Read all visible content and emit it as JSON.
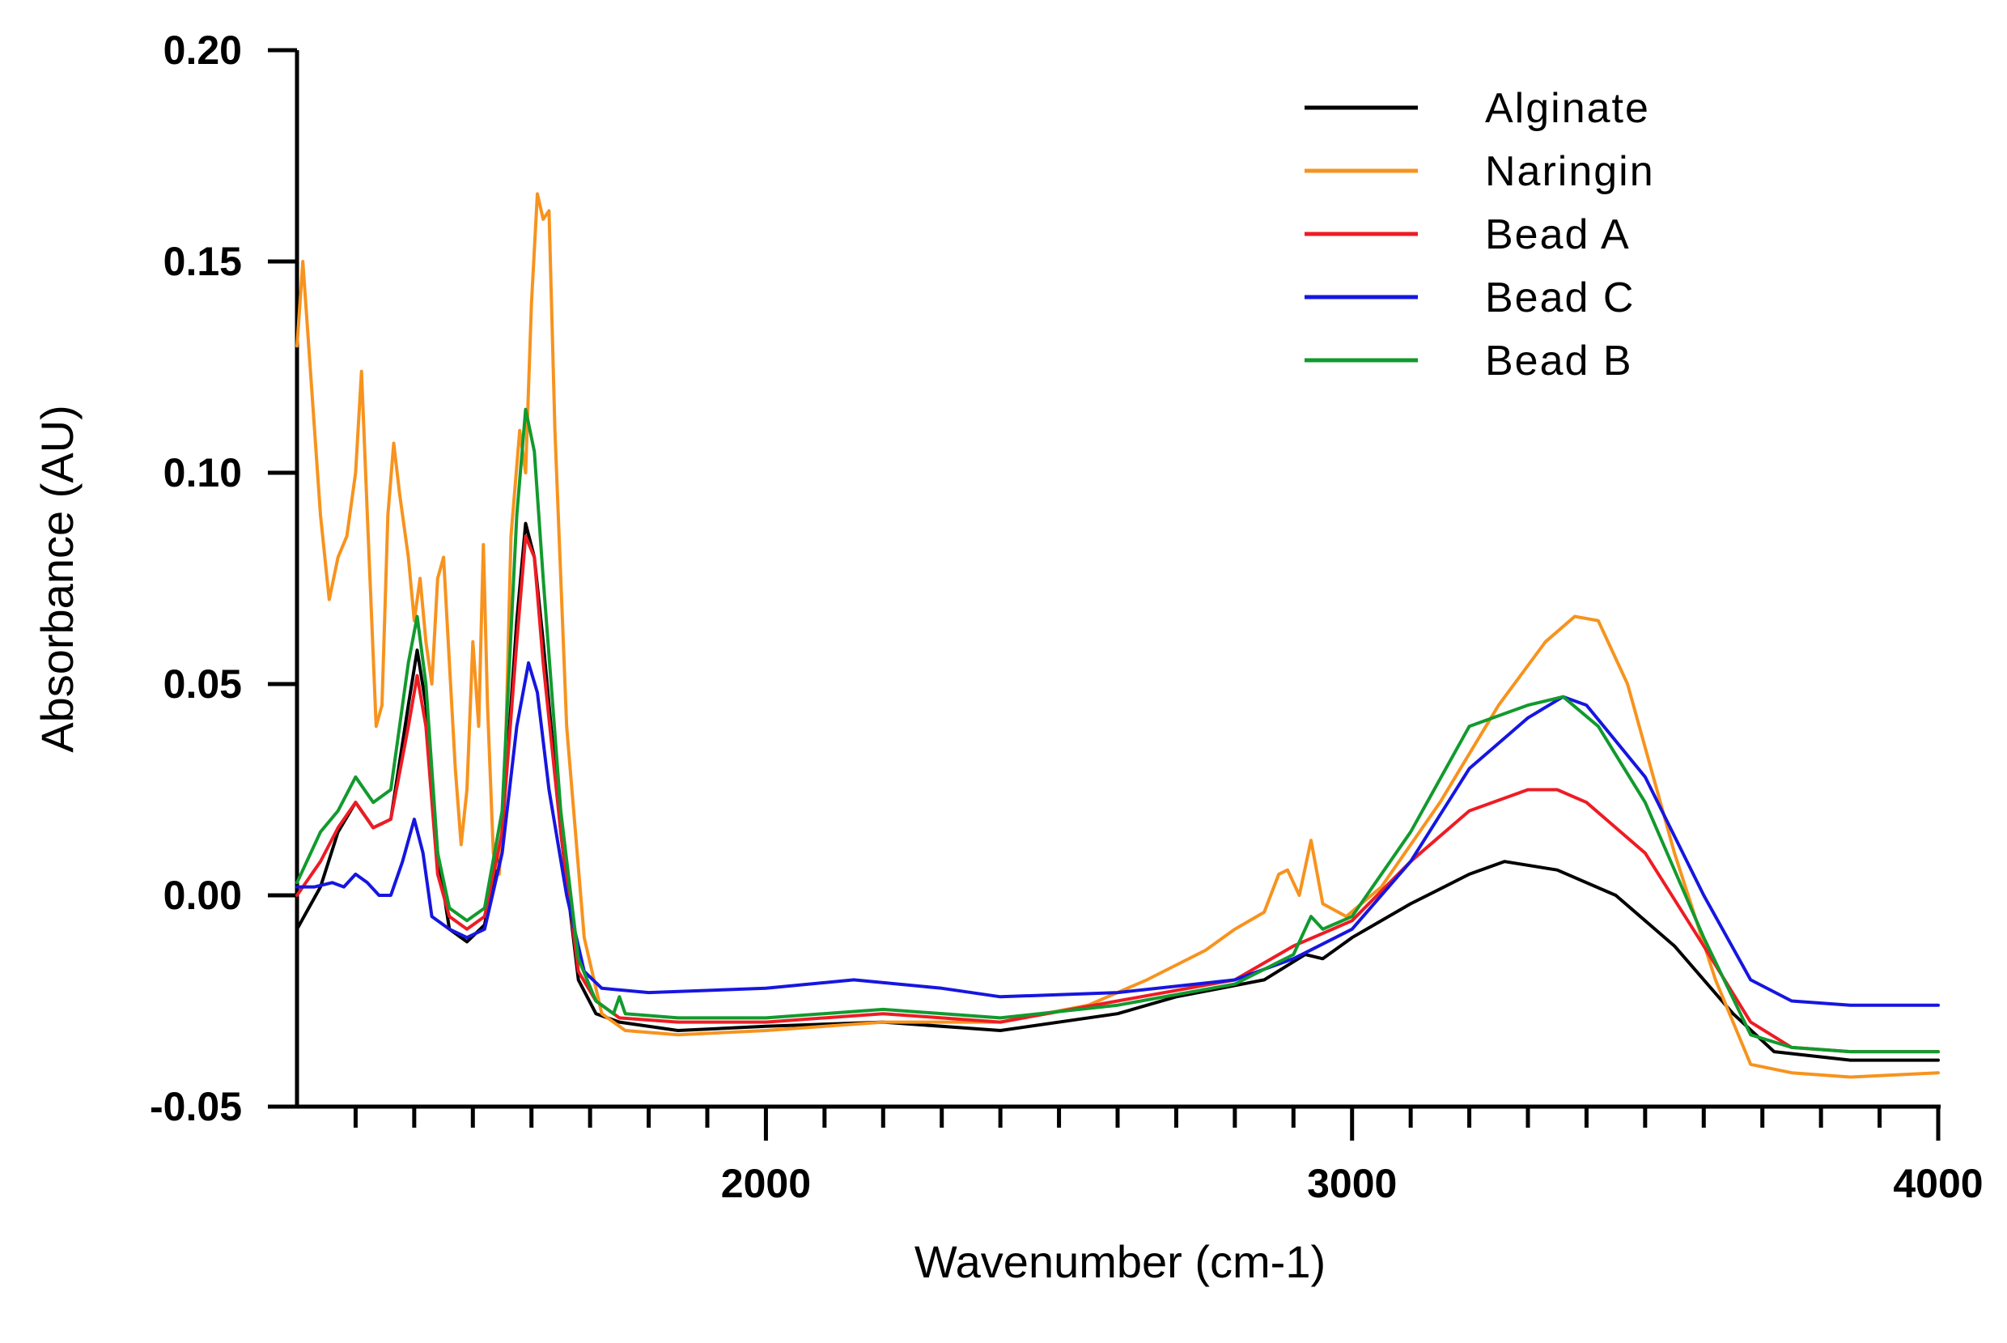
{
  "chart_data": {
    "type": "line",
    "title": "",
    "xlabel": "Wavenumber (cm-1)",
    "ylabel": "Absorbance (AU)",
    "xlim": [
      1200,
      4000
    ],
    "ylim": [
      -0.05,
      0.2
    ],
    "x_major_ticks": [
      2000,
      3000,
      4000
    ],
    "x_major_tick_labels": [
      "2000",
      "3000",
      "4000"
    ],
    "x_minor_ticks": [
      1300,
      1400,
      1500,
      1600,
      1700,
      1800,
      1900,
      2100,
      2200,
      2300,
      2400,
      2500,
      2600,
      2700,
      2800,
      2900,
      3100,
      3200,
      3300,
      3400,
      3500,
      3600,
      3700,
      3800,
      3900
    ],
    "y_ticks": [
      0.2,
      0.15,
      0.1,
      0.05,
      0.0,
      -0.05
    ],
    "y_tick_labels": [
      "0.20",
      "0.15",
      "0.10",
      "0.05",
      "0.00",
      "-0.05"
    ],
    "legend_position": "top-right",
    "series": [
      {
        "name": "Alginate",
        "color": "#000000",
        "points": [
          [
            1200,
            -0.008
          ],
          [
            1240,
            0.002
          ],
          [
            1270,
            0.015
          ],
          [
            1300,
            0.022
          ],
          [
            1330,
            0.016
          ],
          [
            1360,
            0.018
          ],
          [
            1390,
            0.045
          ],
          [
            1405,
            0.058
          ],
          [
            1420,
            0.045
          ],
          [
            1440,
            0.01
          ],
          [
            1460,
            -0.008
          ],
          [
            1490,
            -0.011
          ],
          [
            1520,
            -0.007
          ],
          [
            1550,
            0.015
          ],
          [
            1575,
            0.065
          ],
          [
            1590,
            0.088
          ],
          [
            1605,
            0.08
          ],
          [
            1620,
            0.06
          ],
          [
            1650,
            0.015
          ],
          [
            1680,
            -0.02
          ],
          [
            1710,
            -0.028
          ],
          [
            1750,
            -0.03
          ],
          [
            1850,
            -0.032
          ],
          [
            2000,
            -0.031
          ],
          [
            2200,
            -0.03
          ],
          [
            2400,
            -0.032
          ],
          [
            2600,
            -0.028
          ],
          [
            2700,
            -0.024
          ],
          [
            2850,
            -0.02
          ],
          [
            2920,
            -0.014
          ],
          [
            2950,
            -0.015
          ],
          [
            3000,
            -0.01
          ],
          [
            3100,
            -0.002
          ],
          [
            3200,
            0.005
          ],
          [
            3260,
            0.008
          ],
          [
            3350,
            0.006
          ],
          [
            3450,
            0.0
          ],
          [
            3550,
            -0.012
          ],
          [
            3650,
            -0.028
          ],
          [
            3720,
            -0.037
          ],
          [
            3850,
            -0.039
          ],
          [
            4000,
            -0.039
          ]
        ]
      },
      {
        "name": "Naringin",
        "color": "#f7931e",
        "points": [
          [
            1200,
            0.13
          ],
          [
            1210,
            0.15
          ],
          [
            1225,
            0.12
          ],
          [
            1240,
            0.09
          ],
          [
            1255,
            0.07
          ],
          [
            1270,
            0.08
          ],
          [
            1285,
            0.085
          ],
          [
            1300,
            0.1
          ],
          [
            1310,
            0.124
          ],
          [
            1320,
            0.09
          ],
          [
            1335,
            0.04
          ],
          [
            1345,
            0.045
          ],
          [
            1355,
            0.09
          ],
          [
            1365,
            0.107
          ],
          [
            1375,
            0.095
          ],
          [
            1390,
            0.08
          ],
          [
            1400,
            0.065
          ],
          [
            1410,
            0.075
          ],
          [
            1420,
            0.06
          ],
          [
            1430,
            0.05
          ],
          [
            1440,
            0.075
          ],
          [
            1450,
            0.08
          ],
          [
            1460,
            0.055
          ],
          [
            1470,
            0.03
          ],
          [
            1480,
            0.012
          ],
          [
            1490,
            0.025
          ],
          [
            1500,
            0.06
          ],
          [
            1510,
            0.04
          ],
          [
            1518,
            0.083
          ],
          [
            1525,
            0.045
          ],
          [
            1535,
            0.01
          ],
          [
            1545,
            0.005
          ],
          [
            1555,
            0.03
          ],
          [
            1565,
            0.085
          ],
          [
            1580,
            0.11
          ],
          [
            1590,
            0.1
          ],
          [
            1600,
            0.14
          ],
          [
            1610,
            0.166
          ],
          [
            1620,
            0.16
          ],
          [
            1630,
            0.162
          ],
          [
            1640,
            0.11
          ],
          [
            1660,
            0.04
          ],
          [
            1690,
            -0.01
          ],
          [
            1720,
            -0.028
          ],
          [
            1760,
            -0.032
          ],
          [
            1850,
            -0.033
          ],
          [
            2000,
            -0.032
          ],
          [
            2200,
            -0.03
          ],
          [
            2400,
            -0.03
          ],
          [
            2550,
            -0.026
          ],
          [
            2650,
            -0.02
          ],
          [
            2750,
            -0.013
          ],
          [
            2800,
            -0.008
          ],
          [
            2850,
            -0.004
          ],
          [
            2875,
            0.005
          ],
          [
            2890,
            0.006
          ],
          [
            2910,
            0.0
          ],
          [
            2930,
            0.013
          ],
          [
            2950,
            -0.002
          ],
          [
            2990,
            -0.005
          ],
          [
            3050,
            0.002
          ],
          [
            3150,
            0.022
          ],
          [
            3250,
            0.045
          ],
          [
            3330,
            0.06
          ],
          [
            3380,
            0.066
          ],
          [
            3420,
            0.065
          ],
          [
            3470,
            0.05
          ],
          [
            3550,
            0.01
          ],
          [
            3620,
            -0.02
          ],
          [
            3680,
            -0.04
          ],
          [
            3750,
            -0.042
          ],
          [
            3850,
            -0.043
          ],
          [
            4000,
            -0.042
          ]
        ]
      },
      {
        "name": "Bead A",
        "color": "#ee1c24",
        "points": [
          [
            1200,
            0.0
          ],
          [
            1240,
            0.008
          ],
          [
            1270,
            0.016
          ],
          [
            1300,
            0.022
          ],
          [
            1330,
            0.016
          ],
          [
            1360,
            0.018
          ],
          [
            1390,
            0.04
          ],
          [
            1405,
            0.052
          ],
          [
            1420,
            0.04
          ],
          [
            1440,
            0.005
          ],
          [
            1460,
            -0.005
          ],
          [
            1490,
            -0.008
          ],
          [
            1520,
            -0.005
          ],
          [
            1550,
            0.015
          ],
          [
            1575,
            0.06
          ],
          [
            1590,
            0.085
          ],
          [
            1605,
            0.08
          ],
          [
            1620,
            0.055
          ],
          [
            1650,
            0.015
          ],
          [
            1680,
            -0.018
          ],
          [
            1710,
            -0.025
          ],
          [
            1750,
            -0.029
          ],
          [
            1850,
            -0.03
          ],
          [
            2000,
            -0.03
          ],
          [
            2200,
            -0.028
          ],
          [
            2400,
            -0.03
          ],
          [
            2600,
            -0.025
          ],
          [
            2800,
            -0.02
          ],
          [
            2900,
            -0.012
          ],
          [
            3000,
            -0.006
          ],
          [
            3100,
            0.008
          ],
          [
            3200,
            0.02
          ],
          [
            3300,
            0.025
          ],
          [
            3350,
            0.025
          ],
          [
            3400,
            0.022
          ],
          [
            3500,
            0.01
          ],
          [
            3600,
            -0.012
          ],
          [
            3680,
            -0.03
          ],
          [
            3750,
            -0.036
          ],
          [
            3850,
            -0.037
          ],
          [
            4000,
            -0.037
          ]
        ]
      },
      {
        "name": "Bead C",
        "color": "#1616e0",
        "points": [
          [
            1200,
            0.002
          ],
          [
            1230,
            0.002
          ],
          [
            1260,
            0.003
          ],
          [
            1280,
            0.002
          ],
          [
            1300,
            0.005
          ],
          [
            1320,
            0.003
          ],
          [
            1340,
            0.0
          ],
          [
            1360,
            0.0
          ],
          [
            1380,
            0.008
          ],
          [
            1400,
            0.018
          ],
          [
            1415,
            0.01
          ],
          [
            1430,
            -0.005
          ],
          [
            1460,
            -0.008
          ],
          [
            1490,
            -0.01
          ],
          [
            1520,
            -0.008
          ],
          [
            1550,
            0.01
          ],
          [
            1575,
            0.04
          ],
          [
            1595,
            0.055
          ],
          [
            1610,
            0.048
          ],
          [
            1630,
            0.025
          ],
          [
            1660,
            0.0
          ],
          [
            1690,
            -0.018
          ],
          [
            1720,
            -0.022
          ],
          [
            1800,
            -0.023
          ],
          [
            2000,
            -0.022
          ],
          [
            2150,
            -0.02
          ],
          [
            2300,
            -0.022
          ],
          [
            2400,
            -0.024
          ],
          [
            2600,
            -0.023
          ],
          [
            2800,
            -0.02
          ],
          [
            2900,
            -0.015
          ],
          [
            3000,
            -0.008
          ],
          [
            3100,
            0.008
          ],
          [
            3200,
            0.03
          ],
          [
            3300,
            0.042
          ],
          [
            3360,
            0.047
          ],
          [
            3400,
            0.045
          ],
          [
            3500,
            0.028
          ],
          [
            3600,
            0.0
          ],
          [
            3680,
            -0.02
          ],
          [
            3750,
            -0.025
          ],
          [
            3850,
            -0.026
          ],
          [
            4000,
            -0.026
          ]
        ]
      },
      {
        "name": "Bead B",
        "color": "#129a2e",
        "points": [
          [
            1200,
            0.003
          ],
          [
            1240,
            0.015
          ],
          [
            1270,
            0.02
          ],
          [
            1300,
            0.028
          ],
          [
            1330,
            0.022
          ],
          [
            1360,
            0.025
          ],
          [
            1390,
            0.055
          ],
          [
            1405,
            0.066
          ],
          [
            1420,
            0.05
          ],
          [
            1440,
            0.01
          ],
          [
            1460,
            -0.003
          ],
          [
            1490,
            -0.006
          ],
          [
            1520,
            -0.003
          ],
          [
            1550,
            0.02
          ],
          [
            1575,
            0.09
          ],
          [
            1590,
            0.115
          ],
          [
            1605,
            0.105
          ],
          [
            1620,
            0.075
          ],
          [
            1650,
            0.02
          ],
          [
            1680,
            -0.015
          ],
          [
            1710,
            -0.025
          ],
          [
            1740,
            -0.028
          ],
          [
            1750,
            -0.024
          ],
          [
            1760,
            -0.028
          ],
          [
            1850,
            -0.029
          ],
          [
            2000,
            -0.029
          ],
          [
            2200,
            -0.027
          ],
          [
            2400,
            -0.029
          ],
          [
            2600,
            -0.026
          ],
          [
            2800,
            -0.021
          ],
          [
            2900,
            -0.014
          ],
          [
            2930,
            -0.005
          ],
          [
            2950,
            -0.008
          ],
          [
            3000,
            -0.005
          ],
          [
            3100,
            0.015
          ],
          [
            3200,
            0.04
          ],
          [
            3300,
            0.045
          ],
          [
            3360,
            0.047
          ],
          [
            3420,
            0.04
          ],
          [
            3500,
            0.022
          ],
          [
            3600,
            -0.01
          ],
          [
            3680,
            -0.033
          ],
          [
            3750,
            -0.036
          ],
          [
            3850,
            -0.037
          ],
          [
            4000,
            -0.037
          ]
        ]
      }
    ]
  }
}
